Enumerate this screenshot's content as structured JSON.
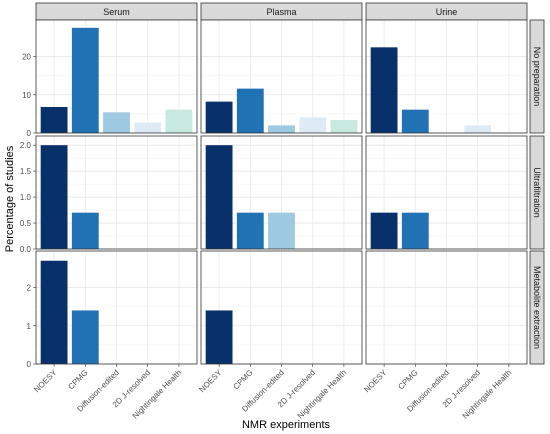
{
  "chart_data": {
    "type": "bar",
    "xlabel": "NMR experiments",
    "ylabel": "Percentage of studies",
    "categories": [
      "NOESY",
      "CPMG",
      "Diffusion-edited",
      "2D J-resolved",
      "Nightingale Health"
    ],
    "category_colors": [
      "#08306b",
      "#2171b5",
      "#9ecae1",
      "#deebf7",
      "#c7e9e0"
    ],
    "columns": [
      "Serum",
      "Plasma",
      "Urine"
    ],
    "rows": [
      {
        "label": "No preparation",
        "ylim": [
          0,
          28.5
        ],
        "ticks": [
          0,
          10,
          20
        ],
        "tick_labels": [
          "0",
          "10",
          "20"
        ],
        "values": [
          [
            6.8,
            27.5,
            5.4,
            2.7,
            6.1
          ],
          [
            8.2,
            11.6,
            2.0,
            4.1,
            3.4
          ],
          [
            22.4,
            6.1,
            0,
            2.0,
            0
          ]
        ]
      },
      {
        "label": "Ultrafiltration",
        "ylim": [
          0,
          2.1
        ],
        "ticks": [
          0.0,
          0.5,
          1.0,
          1.5,
          2.0
        ],
        "tick_labels": [
          "0.0",
          "0.5",
          "1.0",
          "1.5",
          "2.0"
        ],
        "values": [
          [
            2.0,
            0.7,
            0,
            0,
            0
          ],
          [
            2.0,
            0.7,
            0.7,
            0,
            0
          ],
          [
            0.7,
            0.7,
            0,
            0,
            0
          ]
        ]
      },
      {
        "label": "Metabolite extraction",
        "ylim": [
          0,
          2.85
        ],
        "ticks": [
          0,
          1,
          2
        ],
        "tick_labels": [
          "0",
          "1",
          "2"
        ],
        "values": [
          [
            2.7,
            1.4,
            0,
            0,
            0
          ],
          [
            1.4,
            0,
            0,
            0,
            0
          ],
          [
            0,
            0,
            0,
            0,
            0
          ]
        ]
      }
    ],
    "grid": true,
    "legend": "none"
  }
}
